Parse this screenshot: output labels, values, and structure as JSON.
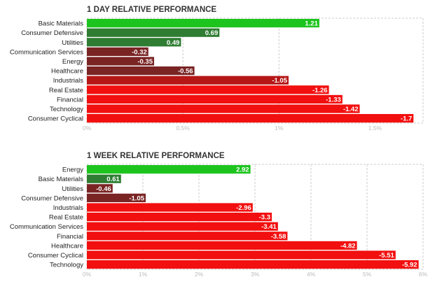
{
  "colors": {
    "strong_positive": "#1ec41e",
    "positive": "#2e7d32",
    "small_negative": "#7a2424",
    "mid_negative": "#b51616",
    "strong_negative": "#f20f0f"
  },
  "chart_data": [
    {
      "type": "bar",
      "orientation": "horizontal",
      "title": "1 DAY RELATIVE PERFORMANCE",
      "categories": [
        "Basic Materials",
        "Consumer Defensive",
        "Utilities",
        "Communication Services",
        "Energy",
        "Healthcare",
        "Industrials",
        "Real Estate",
        "Financial",
        "Technology",
        "Consumer Cyclical"
      ],
      "values": [
        1.21,
        0.69,
        0.49,
        -0.32,
        -0.35,
        -0.56,
        -1.05,
        -1.26,
        -1.33,
        -1.42,
        -1.7
      ],
      "value_labels": [
        "1.21",
        "0.69",
        "0.49",
        "-0.32",
        "-0.35",
        "-0.56",
        "-1.05",
        "-1.26",
        "-1.33",
        "-1.42",
        "-1.7"
      ],
      "bar_colors": [
        "#1ec41e",
        "#2e7d32",
        "#2e7d32",
        "#7a2424",
        "#7a2424",
        "#7a2424",
        "#b51616",
        "#f20f0f",
        "#f20f0f",
        "#f20f0f",
        "#f20f0f"
      ],
      "xlim": [
        0,
        1.75
      ],
      "ticks": [
        0,
        0.5,
        1,
        1.5
      ],
      "tick_labels": [
        "0%",
        "0.5%",
        "1%",
        "1.5%"
      ],
      "grid": true
    },
    {
      "type": "bar",
      "orientation": "horizontal",
      "title": "1 WEEK RELATIVE PERFORMANCE",
      "categories": [
        "Energy",
        "Basic Materials",
        "Utilities",
        "Consumer Defensive",
        "Industrials",
        "Real Estate",
        "Communication Services",
        "Financial",
        "Healthcare",
        "Consumer Cyclical",
        "Technology"
      ],
      "values": [
        2.92,
        0.61,
        -0.46,
        -1.05,
        -2.96,
        -3.3,
        -3.41,
        -3.58,
        -4.82,
        -5.51,
        -5.92
      ],
      "value_labels": [
        "2.92",
        "0.61",
        "-0.46",
        "-1.05",
        "-2.96",
        "-3.3",
        "-3.41",
        "-3.58",
        "-4.82",
        "-5.51",
        "-5.92"
      ],
      "bar_colors": [
        "#1ec41e",
        "#2e7d32",
        "#7a2424",
        "#7a2424",
        "#f20f0f",
        "#f20f0f",
        "#f20f0f",
        "#f20f0f",
        "#f20f0f",
        "#f20f0f",
        "#f20f0f"
      ],
      "xlim": [
        0,
        6
      ],
      "ticks": [
        0,
        1,
        2,
        3,
        4,
        5,
        6
      ],
      "tick_labels": [
        "0%",
        "1%",
        "2%",
        "3%",
        "4%",
        "5%",
        "6%"
      ],
      "grid": true
    }
  ]
}
